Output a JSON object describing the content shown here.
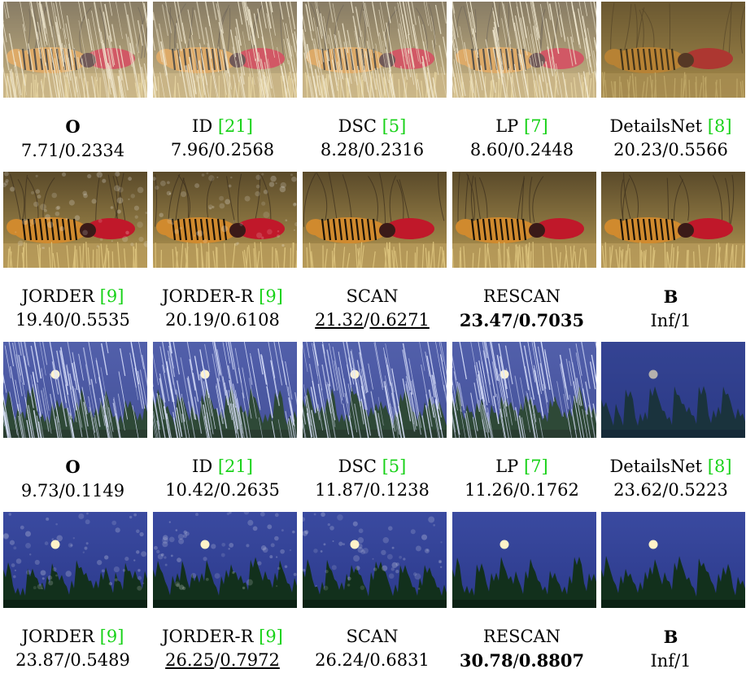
{
  "blocks": [
    {
      "scene": "tiger",
      "row_label": "",
      "tiles": [
        {
          "method": "O",
          "cite": "",
          "psnr": "7.71",
          "ssim": "0.2334",
          "method_bold": true,
          "psnr_style": "",
          "ssim_style": "",
          "variant": "rain_heavy"
        },
        {
          "method": "ID ",
          "cite": "[21]",
          "psnr": "7.96",
          "ssim": "0.2568",
          "method_bold": false,
          "psnr_style": "",
          "ssim_style": "",
          "variant": "rain_heavy"
        },
        {
          "method": "DSC ",
          "cite": "[5]",
          "psnr": "8.28",
          "ssim": "0.2316",
          "method_bold": false,
          "psnr_style": "",
          "ssim_style": "",
          "variant": "rain_heavy"
        },
        {
          "method": "LP ",
          "cite": "[7]",
          "psnr": "8.60",
          "ssim": "0.2448",
          "method_bold": false,
          "psnr_style": "",
          "ssim_style": "",
          "variant": "rain_heavy"
        },
        {
          "method": "DetailsNet ",
          "cite": "[8]",
          "psnr": "20.23",
          "ssim": "0.5566",
          "method_bold": false,
          "psnr_style": "",
          "ssim_style": "",
          "variant": "hazy"
        }
      ]
    },
    {
      "scene": "tiger",
      "tiles": [
        {
          "method": "JORDER ",
          "cite": "[9]",
          "psnr": "19.40",
          "ssim": "0.5535",
          "method_bold": false,
          "psnr_style": "",
          "ssim_style": "",
          "variant": "blotchy"
        },
        {
          "method": "JORDER-R ",
          "cite": "[9]",
          "psnr": "20.19",
          "ssim": "0.6108",
          "method_bold": false,
          "psnr_style": "",
          "ssim_style": "",
          "variant": "blotchy"
        },
        {
          "method": "SCAN",
          "cite": "",
          "psnr": "21.32",
          "ssim": "0.6271",
          "method_bold": false,
          "psnr_style": "uline",
          "ssim_style": "uline",
          "variant": "clean"
        },
        {
          "method": "RESCAN",
          "cite": "",
          "psnr": "23.47",
          "ssim": "0.7035",
          "method_bold": false,
          "psnr_style": "bold",
          "ssim_style": "bold",
          "variant": "clean"
        },
        {
          "method": "B",
          "cite": "",
          "psnr": "Inf",
          "ssim": "1",
          "method_bold": true,
          "psnr_style": "",
          "ssim_style": "",
          "variant": "clean"
        }
      ]
    },
    {
      "scene": "moon",
      "tiles": [
        {
          "method": "O",
          "cite": "",
          "psnr": "9.73",
          "ssim": "0.1149",
          "method_bold": true,
          "psnr_style": "",
          "ssim_style": "",
          "variant": "rain_heavy"
        },
        {
          "method": "ID ",
          "cite": "[21]",
          "psnr": "10.42",
          "ssim": "0.2635",
          "method_bold": false,
          "psnr_style": "",
          "ssim_style": "",
          "variant": "rain_heavy"
        },
        {
          "method": "DSC ",
          "cite": "[5]",
          "psnr": "11.87",
          "ssim": "0.1238",
          "method_bold": false,
          "psnr_style": "",
          "ssim_style": "",
          "variant": "rain_heavy"
        },
        {
          "method": "LP ",
          "cite": "[7]",
          "psnr": "11.26",
          "ssim": "0.1762",
          "method_bold": false,
          "psnr_style": "",
          "ssim_style": "",
          "variant": "rain_heavy"
        },
        {
          "method": "DetailsNet ",
          "cite": "[8]",
          "psnr": "23.62",
          "ssim": "0.5223",
          "method_bold": false,
          "psnr_style": "",
          "ssim_style": "",
          "variant": "hazy"
        }
      ]
    },
    {
      "scene": "moon",
      "tiles": [
        {
          "method": "JORDER ",
          "cite": "[9]",
          "psnr": "23.87",
          "ssim": "0.5489",
          "method_bold": false,
          "psnr_style": "",
          "ssim_style": "",
          "variant": "blotchy"
        },
        {
          "method": "JORDER-R ",
          "cite": "[9]",
          "psnr": "26.25",
          "ssim": "0.7972",
          "method_bold": false,
          "psnr_style": "uline",
          "ssim_style": "uline",
          "variant": "blotchy"
        },
        {
          "method": "SCAN",
          "cite": "",
          "psnr": "26.24",
          "ssim": "0.6831",
          "method_bold": false,
          "psnr_style": "",
          "ssim_style": "",
          "variant": "blotchy"
        },
        {
          "method": "RESCAN",
          "cite": "",
          "psnr": "30.78",
          "ssim": "0.8807",
          "method_bold": false,
          "psnr_style": "bold",
          "ssim_style": "bold",
          "variant": "clean"
        },
        {
          "method": "B",
          "cite": "",
          "psnr": "Inf",
          "ssim": "1",
          "method_bold": true,
          "psnr_style": "",
          "ssim_style": "",
          "variant": "clean"
        }
      ]
    }
  ],
  "colors": {
    "cite_green": "#19d219",
    "tiger_grass": "#b89a52",
    "tiger_body": "#d08a2e",
    "tiger_red": "#c0182a",
    "moon_sky": "#2c3a8c",
    "moon_trees": "#12301c",
    "moon_disc": "#fff2c8"
  },
  "separator": "/"
}
